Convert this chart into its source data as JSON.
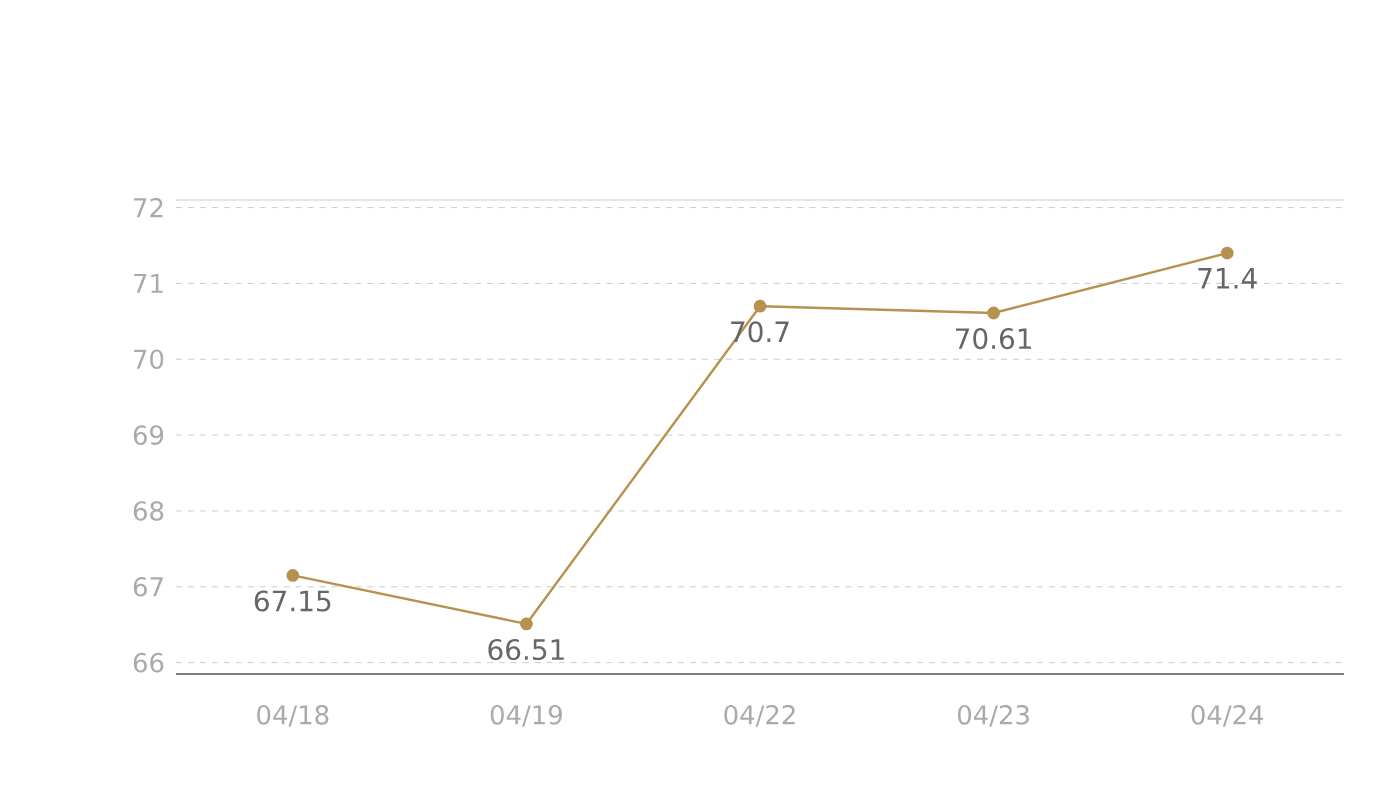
{
  "chart_data": {
    "type": "line",
    "categories": [
      "04/18",
      "04/19",
      "04/22",
      "04/23",
      "04/24"
    ],
    "series": [
      {
        "color": "#b8914f",
        "values": [
          67.15,
          66.51,
          70.7,
          70.61,
          71.4
        ]
      }
    ],
    "ylim": [
      65.85,
      72.1
    ],
    "yticks": [
      66,
      67,
      68,
      69,
      70,
      71,
      72
    ],
    "grid": "y",
    "marker": "circle",
    "line_style": "solid",
    "data_labels": true
  }
}
